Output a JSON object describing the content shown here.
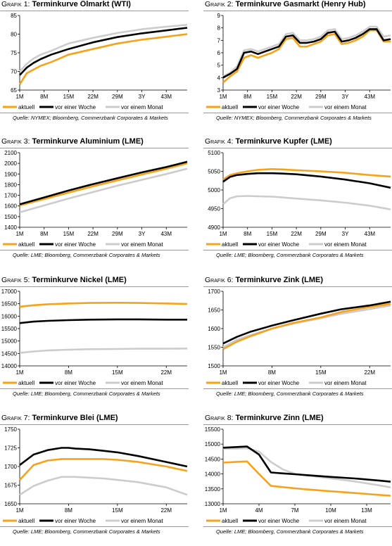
{
  "legend_labels": [
    "aktuell",
    "vor einer Woche",
    "vor einem Monat"
  ],
  "colors": {
    "aktuell": "#f7a21b",
    "vor einer Woche": "#000000",
    "vor einem Monat": "#cccccc"
  },
  "panels": [
    {
      "prefix": "Grafik 1:",
      "title": "Terminkurve Ölmarkt (WTI)",
      "source": "Quelle: NYMEX; Bloomberg, Commerzbank Corporates & Markets"
    },
    {
      "prefix": "Grafik 2:",
      "title": "Terminkurve Gasmarkt (Henry Hub)",
      "source": "Quelle: NYMEX; Bloomberg, Commerzbank Corporates & Markets"
    },
    {
      "prefix": "Grafik 3:",
      "title": "Terminkurve Aluminium (LME)",
      "source": "Quelle: LME; Bloomberg, Commerzbank Corporates & Markets"
    },
    {
      "prefix": "Grafik 4:",
      "title": "Terminkurve Kupfer (LME)",
      "source": "Quelle: LME; Bloomberg, Commerzbank Corporates & Markets"
    },
    {
      "prefix": "Grafik 5:",
      "title": "Terminkurve Nickel (LME)",
      "source": "Quelle: LME; Bloomberg, Commerzbank Corporates & Markets"
    },
    {
      "prefix": "Grafik 6:",
      "title": "Terminkurve Zink (LME)",
      "source": "Quelle: LME; Bloomberg, Commerzbank Corporates & Markets"
    },
    {
      "prefix": "Grafik 7:",
      "title": "Terminkurve Blei (LME)",
      "source": "Quelle: LME; Bloomberg, Commerzbank Corporates & Markets"
    },
    {
      "prefix": "Grafik 8:",
      "title": "Terminkurve Zinn (LME)",
      "source": "Quelle: LME; Bloomberg, Commerzbank Corporates & Markets"
    }
  ],
  "chart_data": [
    {
      "type": "line",
      "title": "Terminkurve Ölmarkt (WTI)",
      "x": [
        1,
        3,
        5,
        7,
        10,
        15,
        22,
        29,
        36,
        43,
        49
      ],
      "x_ticks": [
        1,
        8,
        15,
        22,
        29,
        36,
        43
      ],
      "x_tick_labels": [
        "1M",
        "8M",
        "15M",
        "22M",
        "29M",
        "3Y",
        "43M"
      ],
      "xlim": [
        1,
        49
      ],
      "yticks": [
        65,
        70,
        75,
        80,
        85
      ],
      "ylim": [
        65,
        85
      ],
      "series": [
        {
          "name": "aktuell",
          "values": [
            66.5,
            69.5,
            70.5,
            71.5,
            72.5,
            74.5,
            76.0,
            77.5,
            78.5,
            79.3,
            80.0
          ]
        },
        {
          "name": "vor einer Woche",
          "values": [
            69.0,
            71.0,
            72.3,
            73.3,
            74.5,
            76.0,
            77.8,
            79.2,
            80.2,
            81.0,
            81.7
          ]
        },
        {
          "name": "vor einem Monat",
          "values": [
            70.0,
            72.0,
            73.5,
            74.5,
            75.5,
            77.5,
            79.0,
            80.3,
            81.3,
            82.0,
            82.5
          ]
        }
      ]
    },
    {
      "type": "line",
      "title": "Terminkurve Gasmarkt (Henry Hub)",
      "x": [
        1,
        3,
        5,
        7,
        9,
        11,
        13,
        15,
        17,
        19,
        21,
        23,
        25,
        27,
        29,
        31,
        33,
        35,
        37,
        39,
        41,
        43,
        45,
        47,
        49
      ],
      "x_ticks": [
        1,
        8,
        15,
        22,
        29,
        36,
        43
      ],
      "x_tick_labels": [
        "1M",
        "8M",
        "15M",
        "22M",
        "29M",
        "3Y",
        "43M"
      ],
      "xlim": [
        1,
        49
      ],
      "yticks": [
        3,
        4,
        5,
        6,
        7,
        8,
        9
      ],
      "ylim": [
        3,
        9
      ],
      "series": [
        {
          "name": "aktuell",
          "values": [
            3.6,
            4.1,
            4.5,
            5.6,
            5.8,
            5.6,
            5.8,
            6.0,
            6.3,
            7.1,
            7.2,
            6.5,
            6.5,
            6.7,
            6.9,
            7.4,
            7.5,
            6.7,
            6.8,
            7.0,
            7.3,
            7.8,
            7.8,
            6.9,
            6.9
          ]
        },
        {
          "name": "vor einer Woche",
          "values": [
            4.0,
            4.3,
            4.7,
            6.0,
            6.1,
            5.9,
            6.1,
            6.3,
            6.5,
            7.3,
            7.4,
            6.8,
            6.8,
            6.9,
            7.1,
            7.6,
            7.7,
            6.9,
            7.0,
            7.2,
            7.5,
            7.9,
            7.9,
            7.0,
            7.1
          ]
        },
        {
          "name": "vor einem Monat",
          "values": [
            4.1,
            4.4,
            4.9,
            6.2,
            6.3,
            6.1,
            6.3,
            6.5,
            6.7,
            7.5,
            7.6,
            7.0,
            7.0,
            7.1,
            7.3,
            7.8,
            7.9,
            7.1,
            7.2,
            7.4,
            7.7,
            8.1,
            8.1,
            7.3,
            7.4
          ]
        }
      ]
    },
    {
      "type": "line",
      "title": "Terminkurve Aluminium (LME)",
      "x": [
        1,
        8,
        15,
        22,
        29,
        36,
        43,
        49
      ],
      "x_ticks": [
        1,
        8,
        15,
        22,
        29,
        36,
        43
      ],
      "x_tick_labels": [
        "1M",
        "8M",
        "15M",
        "22M",
        "29M",
        "3Y",
        "43M"
      ],
      "xlim": [
        1,
        49
      ],
      "yticks": [
        1400,
        1500,
        1600,
        1700,
        1800,
        1900,
        2000,
        2100
      ],
      "ylim": [
        1400,
        2100
      ],
      "series": [
        {
          "name": "aktuell",
          "values": [
            1605,
            1665,
            1725,
            1785,
            1840,
            1895,
            1950,
            2000
          ]
        },
        {
          "name": "vor einer Woche",
          "values": [
            1615,
            1680,
            1745,
            1805,
            1860,
            1915,
            1965,
            2015
          ]
        },
        {
          "name": "vor einem Monat",
          "values": [
            1540,
            1605,
            1670,
            1730,
            1790,
            1845,
            1900,
            1950
          ]
        }
      ]
    },
    {
      "type": "line",
      "title": "Terminkurve Kupfer (LME)",
      "x": [
        1,
        3,
        5,
        8,
        11,
        15,
        18,
        22,
        29,
        36,
        43,
        49
      ],
      "x_ticks": [
        1,
        8,
        15,
        22,
        29,
        36,
        43
      ],
      "x_tick_labels": [
        "1M",
        "8M",
        "15M",
        "22M",
        "29M",
        "3Y",
        "43M"
      ],
      "xlim": [
        1,
        49
      ],
      "yticks": [
        4900,
        4950,
        5000,
        5050,
        5100
      ],
      "ylim": [
        4900,
        5100
      ],
      "series": [
        {
          "name": "aktuell",
          "values": [
            5028,
            5040,
            5045,
            5050,
            5054,
            5056,
            5055,
            5053,
            5050,
            5046,
            5040,
            5036
          ]
        },
        {
          "name": "vor einer Woche",
          "values": [
            5022,
            5035,
            5040,
            5043,
            5045,
            5045,
            5044,
            5042,
            5036,
            5028,
            5018,
            5006
          ]
        },
        {
          "name": "vor einem Monat",
          "values": [
            4962,
            4978,
            4983,
            4984,
            4983,
            4982,
            4980,
            4977,
            4972,
            4966,
            4958,
            4948
          ]
        }
      ]
    },
    {
      "type": "line",
      "title": "Terminkurve Nickel (LME)",
      "x": [
        1,
        3,
        5,
        8,
        11,
        15,
        18,
        22,
        25
      ],
      "x_ticks": [
        1,
        8,
        15,
        22
      ],
      "x_tick_labels": [
        "1M",
        "8M",
        "15M",
        "22M"
      ],
      "xlim": [
        1,
        25
      ],
      "yticks": [
        14000,
        14500,
        15000,
        15500,
        16000,
        16500,
        17000
      ],
      "ylim": [
        14000,
        17000
      ],
      "series": [
        {
          "name": "aktuell",
          "values": [
            16380,
            16440,
            16480,
            16510,
            16530,
            16540,
            16530,
            16510,
            16490
          ]
        },
        {
          "name": "vor einer Woche",
          "values": [
            15720,
            15780,
            15810,
            15840,
            15860,
            15870,
            15870,
            15860,
            15860
          ]
        },
        {
          "name": "vor einem Monat",
          "values": [
            14520,
            14580,
            14620,
            14650,
            14670,
            14680,
            14690,
            14690,
            14700
          ]
        }
      ]
    },
    {
      "type": "line",
      "title": "Terminkurve Zink (LME)",
      "x": [
        1,
        3,
        5,
        8,
        11,
        15,
        18,
        22,
        25
      ],
      "x_ticks": [
        1,
        8,
        15,
        22
      ],
      "x_tick_labels": [
        "1M",
        "8M",
        "15M",
        "22M"
      ],
      "xlim": [
        1,
        25
      ],
      "yticks": [
        1500,
        1550,
        1600,
        1650,
        1700
      ],
      "ylim": [
        1500,
        1700
      ],
      "series": [
        {
          "name": "aktuell",
          "values": [
            1545,
            1565,
            1580,
            1600,
            1615,
            1630,
            1645,
            1658,
            1666
          ]
        },
        {
          "name": "vor einer Woche",
          "values": [
            1560,
            1578,
            1592,
            1608,
            1622,
            1640,
            1652,
            1662,
            1672
          ]
        },
        {
          "name": "vor einem Monat",
          "values": [
            1550,
            1570,
            1583,
            1600,
            1613,
            1628,
            1640,
            1652,
            1662
          ]
        }
      ]
    },
    {
      "type": "line",
      "title": "Terminkurve Blei (LME)",
      "x": [
        1,
        3,
        5,
        7,
        8,
        9,
        11,
        13,
        15,
        18,
        22,
        25
      ],
      "x_ticks": [
        1,
        8,
        15,
        22
      ],
      "x_tick_labels": [
        "1M",
        "8M",
        "15M",
        "22M"
      ],
      "xlim": [
        1,
        25
      ],
      "yticks": [
        1650,
        1675,
        1700,
        1725,
        1750
      ],
      "ylim": [
        1650,
        1750
      ],
      "series": [
        {
          "name": "aktuell",
          "values": [
            1682,
            1702,
            1708,
            1710,
            1710,
            1710,
            1710,
            1710,
            1709,
            1706,
            1700,
            1694
          ]
        },
        {
          "name": "vor einer Woche",
          "values": [
            1702,
            1716,
            1722,
            1725,
            1725,
            1724,
            1723,
            1721,
            1719,
            1714,
            1706,
            1700
          ]
        },
        {
          "name": "vor einem Monat",
          "values": [
            1662,
            1674,
            1681,
            1686,
            1686,
            1686,
            1685,
            1684,
            1682,
            1679,
            1672,
            1662
          ]
        }
      ]
    },
    {
      "type": "line",
      "title": "Terminkurve Zinn (LME)",
      "x": [
        1,
        2,
        3,
        4,
        5,
        6,
        7,
        8,
        10,
        12,
        14,
        15
      ],
      "x_ticks": [
        1,
        4,
        7,
        10,
        13
      ],
      "x_tick_labels": [
        "1M",
        "4M",
        "7M",
        "10M",
        "13M"
      ],
      "xlim": [
        1,
        15
      ],
      "yticks": [
        13000,
        13500,
        14000,
        14500,
        15000,
        15500
      ],
      "ylim": [
        13000,
        15500
      ],
      "series": [
        {
          "name": "aktuell",
          "values": [
            14380,
            14400,
            14420,
            14000,
            13600,
            13560,
            13520,
            13480,
            13420,
            13360,
            13300,
            13270
          ]
        },
        {
          "name": "vor einer Woche",
          "values": [
            14880,
            14900,
            14920,
            14650,
            14050,
            14020,
            13990,
            13960,
            13900,
            13850,
            13780,
            13740
          ]
        },
        {
          "name": "vor einem Monat",
          "values": [
            14850,
            14850,
            14860,
            14750,
            14400,
            14150,
            14000,
            13950,
            13850,
            13750,
            13620,
            13550
          ]
        }
      ]
    }
  ]
}
